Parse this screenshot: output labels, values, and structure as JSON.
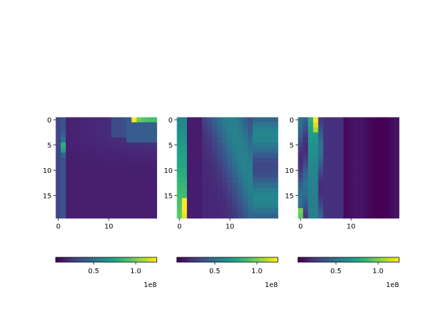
{
  "chart_data": [
    {
      "type": "heatmap",
      "title": "",
      "xlabel": "",
      "ylabel": "",
      "rows": 20,
      "cols": 20,
      "xticks": [
        0,
        10
      ],
      "yticks": [
        0,
        5,
        10,
        15
      ],
      "colormap": "viridis",
      "colorbar": {
        "orientation": "horizontal",
        "range": [
          5000000,
          125000000
        ],
        "ticks": [
          50000000,
          100000000
        ],
        "tick_labels": [
          "0.5",
          "1.0"
        ],
        "offset_label": "1e8"
      },
      "description_grid": "col0 bright band on left; top-right high values near row0 col15-19",
      "features": {
        "base_level": 22000000,
        "hotspots": [
          {
            "row": 0,
            "col": 15,
            "value": 125000000
          },
          {
            "row": 0,
            "col": 16,
            "value": 98000000
          },
          {
            "row": 0,
            "col": 17,
            "value": 92000000
          },
          {
            "row": 0,
            "col": 18,
            "value": 90000000
          },
          {
            "row": 0,
            "col": 19,
            "value": 88000000
          },
          {
            "row": 5,
            "col": 1,
            "value": 80000000
          },
          {
            "row": 6,
            "col": 1,
            "value": 72000000
          }
        ]
      }
    },
    {
      "type": "heatmap",
      "title": "",
      "xlabel": "",
      "ylabel": "",
      "rows": 20,
      "cols": 20,
      "xticks": [
        0,
        10
      ],
      "yticks": [
        0,
        5,
        10,
        15
      ],
      "colormap": "viridis",
      "colorbar": {
        "orientation": "horizontal",
        "range": [
          5000000,
          125000000
        ],
        "ticks": [
          50000000,
          100000000
        ],
        "tick_labels": [
          "0.5",
          "1.0"
        ],
        "offset_label": "1e8"
      },
      "features": {
        "base_level": 30000000,
        "hotspots": [
          {
            "row": 16,
            "col": 1,
            "value": 125000000
          },
          {
            "row": 17,
            "col": 1,
            "value": 125000000
          },
          {
            "row": 18,
            "col": 1,
            "value": 125000000
          },
          {
            "row": 19,
            "col": 1,
            "value": 120000000
          }
        ]
      }
    },
    {
      "type": "heatmap",
      "title": "",
      "xlabel": "",
      "ylabel": "",
      "rows": 20,
      "cols": 20,
      "xticks": [
        0,
        10
      ],
      "yticks": [
        0,
        5,
        10,
        15
      ],
      "colormap": "viridis",
      "colorbar": {
        "orientation": "horizontal",
        "range": [
          5000000,
          125000000
        ],
        "ticks": [
          50000000,
          100000000
        ],
        "tick_labels": [
          "0.5",
          "1.0"
        ],
        "offset_label": "1e8"
      },
      "features": {
        "base_level": 12000000,
        "hotspots": [
          {
            "row": 0,
            "col": 3,
            "value": 125000000
          },
          {
            "row": 1,
            "col": 3,
            "value": 118000000
          },
          {
            "row": 2,
            "col": 3,
            "value": 110000000
          },
          {
            "row": 18,
            "col": 0,
            "value": 100000000
          },
          {
            "row": 19,
            "col": 0,
            "value": 95000000
          }
        ]
      }
    }
  ]
}
